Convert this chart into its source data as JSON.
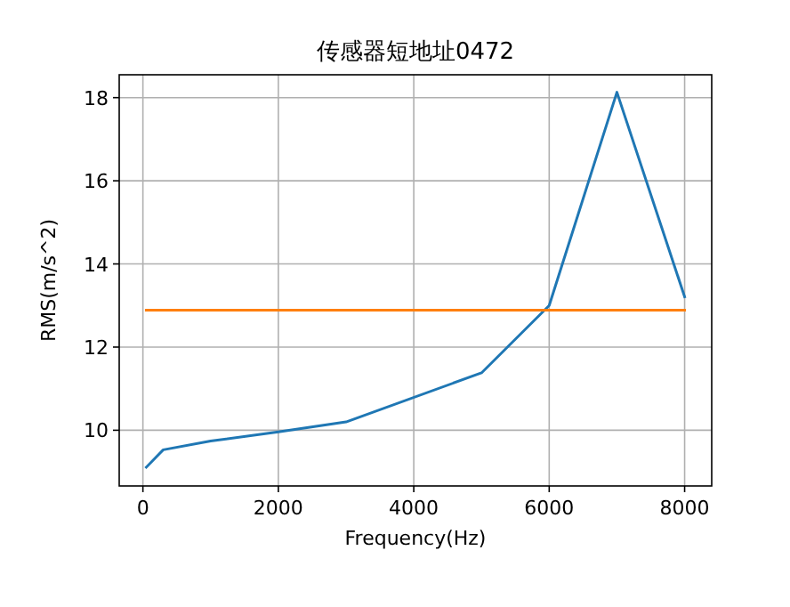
{
  "chart_data": {
    "type": "line",
    "title": "传感器短地址0472",
    "xlabel": "Frequency(Hz)",
    "ylabel": "RMS(m/s^2)",
    "xlim": [
      -350,
      8400
    ],
    "ylim": [
      8.66,
      18.55
    ],
    "xticks": [
      0,
      2000,
      4000,
      6000,
      8000
    ],
    "yticks": [
      10,
      12,
      14,
      16,
      18
    ],
    "grid": true,
    "series": [
      {
        "color": "#1f77b4",
        "x": [
          50,
          300,
          1000,
          2000,
          3000,
          5000,
          6000,
          7000,
          8000
        ],
        "values": [
          9.11,
          9.53,
          9.74,
          9.96,
          10.2,
          11.38,
          13.0,
          18.13,
          13.21
        ]
      },
      {
        "color": "#ff7f0e",
        "x": [
          50,
          8000
        ],
        "values": [
          12.89,
          12.89
        ]
      }
    ]
  }
}
